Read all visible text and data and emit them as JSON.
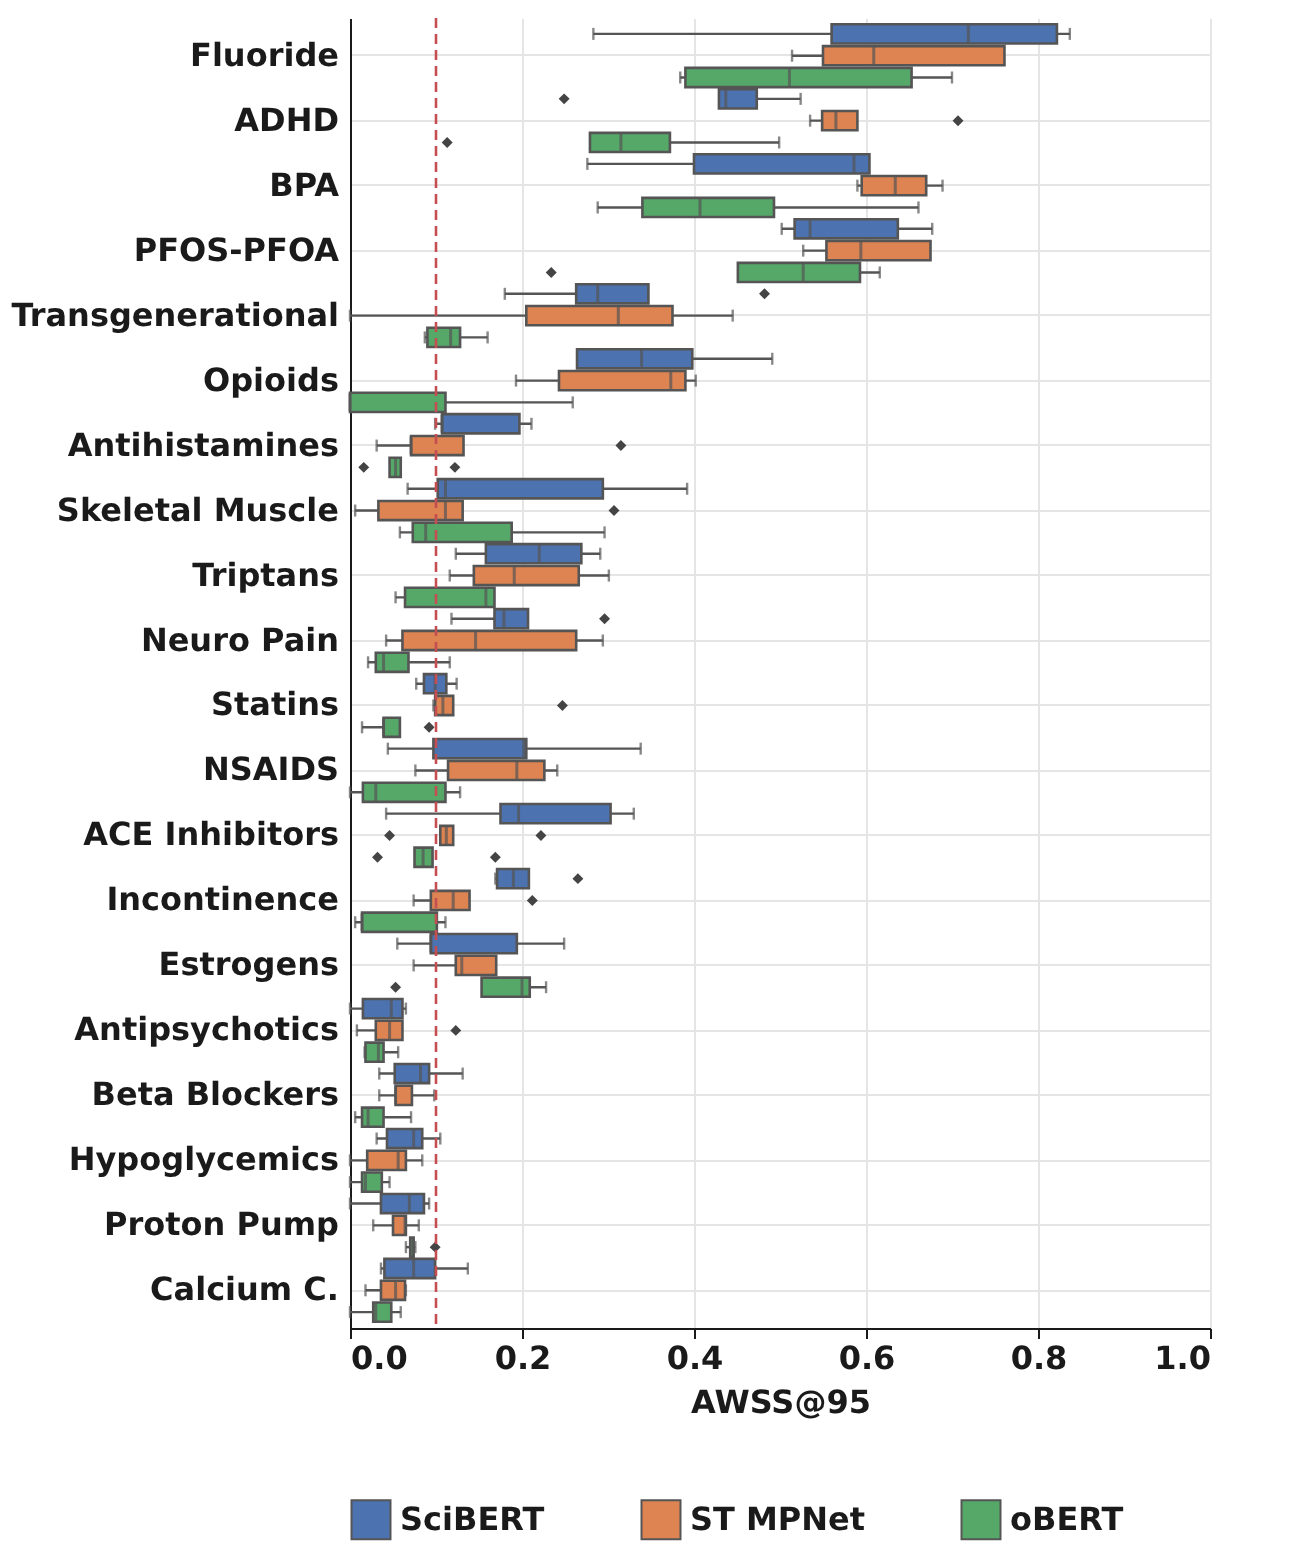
{
  "chart_data": {
    "type": "box",
    "orientation": "horizontal",
    "xlabel": "AWSS@95",
    "categories": [
      "Fluoride",
      "ADHD",
      "BPA",
      "PFOS-PFOA",
      "Transgenerational",
      "Opioids",
      "Antihistamines",
      "Skeletal Muscle",
      "Triptans",
      "Neuro Pain",
      "Statins",
      "NSAIDS",
      "ACE Inhibitors",
      "Incontinence",
      "Estrogens",
      "Antipsychotics",
      "Beta Blockers",
      "Hypoglycemics",
      "Proton Pump",
      "Calcium C."
    ],
    "xlim": [
      0,
      1
    ],
    "xticks": [
      {
        "value": 0,
        "label": "0.0"
      },
      0.2,
      0.4,
      0.6,
      0.8,
      {
        "value": 1,
        "label": "1.0"
      }
    ],
    "grid": true,
    "legend": "bottom",
    "ref_lines": [
      {
        "axis": "x",
        "value": 0.1,
        "color": "#c44e52",
        "line_style": "dashed"
      }
    ],
    "series": [
      {
        "name": "SciBERT",
        "color": "#4c72b0",
        "boxes": [
          {
            "low": 0.283,
            "q1": 0.56,
            "median": 0.719,
            "q3": 0.822,
            "high": 0.837
          },
          {
            "low": 0.429,
            "q1": 0.429,
            "median": 0.437,
            "q3": 0.473,
            "high": 0.524,
            "outliers": [
              0.249
            ]
          },
          {
            "low": 0.276,
            "q1": 0.4,
            "median": 0.586,
            "q3": 0.604,
            "high": 0.604
          },
          {
            "low": 0.502,
            "q1": 0.517,
            "median": 0.535,
            "q3": 0.637,
            "high": 0.677
          },
          {
            "low": 0.18,
            "q1": 0.263,
            "median": 0.288,
            "q3": 0.347,
            "high": 0.347,
            "outliers": [
              0.482
            ]
          },
          {
            "low": 0.264,
            "q1": 0.264,
            "median": 0.339,
            "q3": 0.398,
            "high": 0.491
          },
          {
            "low": 0.099,
            "q1": 0.107,
            "median": 0.107,
            "q3": 0.197,
            "high": 0.211
          },
          {
            "low": 0.067,
            "q1": 0.102,
            "median": 0.111,
            "q3": 0.294,
            "high": 0.392
          },
          {
            "low": 0.123,
            "q1": 0.158,
            "median": 0.22,
            "q3": 0.269,
            "high": 0.291
          },
          {
            "low": 0.118,
            "q1": 0.168,
            "median": 0.179,
            "q3": 0.207,
            "high": 0.207,
            "outliers": [
              0.296
            ]
          },
          {
            "low": 0.077,
            "q1": 0.086,
            "median": 0.099,
            "q3": 0.112,
            "high": 0.124
          },
          {
            "low": 0.044,
            "q1": 0.097,
            "median": 0.202,
            "q3": 0.205,
            "high": 0.338
          },
          {
            "low": 0.042,
            "q1": 0.175,
            "median": 0.196,
            "q3": 0.303,
            "high": 0.33
          },
          {
            "low": 0.169,
            "q1": 0.171,
            "median": 0.19,
            "q3": 0.208,
            "high": 0.208,
            "outliers": [
              0.265
            ]
          },
          {
            "low": 0.055,
            "q1": 0.094,
            "median": 0.094,
            "q3": 0.194,
            "high": 0.249
          },
          {
            "low": 0.0,
            "q1": 0.015,
            "median": 0.048,
            "q3": 0.061,
            "high": 0.065
          },
          {
            "low": 0.034,
            "q1": 0.052,
            "median": 0.082,
            "q3": 0.092,
            "high": 0.131
          },
          {
            "low": 0.031,
            "q1": 0.043,
            "median": 0.074,
            "q3": 0.084,
            "high": 0.105
          },
          {
            "low": 0.0,
            "q1": 0.036,
            "median": 0.069,
            "q3": 0.086,
            "high": 0.092
          },
          {
            "low": 0.036,
            "q1": 0.04,
            "median": 0.074,
            "q3": 0.099,
            "high": 0.137
          }
        ]
      },
      {
        "name": "ST MPNet",
        "color": "#dd8452",
        "boxes": [
          {
            "low": 0.514,
            "q1": 0.55,
            "median": 0.609,
            "q3": 0.761,
            "high": 0.761
          },
          {
            "low": 0.535,
            "q1": 0.549,
            "median": 0.565,
            "q3": 0.59,
            "high": 0.59,
            "outliers": [
              0.707
            ]
          },
          {
            "low": 0.59,
            "q1": 0.595,
            "median": 0.634,
            "q3": 0.67,
            "high": 0.689
          },
          {
            "low": 0.527,
            "q1": 0.554,
            "median": 0.594,
            "q3": 0.675,
            "high": 0.675
          },
          {
            "low": 0.0,
            "q1": 0.205,
            "median": 0.312,
            "q3": 0.375,
            "high": 0.445
          },
          {
            "low": 0.193,
            "q1": 0.243,
            "median": 0.373,
            "q3": 0.39,
            "high": 0.402
          },
          {
            "low": 0.031,
            "q1": 0.071,
            "median": 0.071,
            "q3": 0.132,
            "high": 0.132,
            "outliers": [
              0.315
            ]
          },
          {
            "low": 0.006,
            "q1": 0.033,
            "median": 0.111,
            "q3": 0.131,
            "high": 0.131,
            "outliers": [
              0.307
            ]
          },
          {
            "low": 0.116,
            "q1": 0.144,
            "median": 0.191,
            "q3": 0.266,
            "high": 0.301
          },
          {
            "low": 0.042,
            "q1": 0.061,
            "median": 0.146,
            "q3": 0.263,
            "high": 0.294
          },
          {
            "low": 0.097,
            "q1": 0.099,
            "median": 0.108,
            "q3": 0.12,
            "high": 0.12,
            "outliers": [
              0.247
            ]
          },
          {
            "low": 0.076,
            "q1": 0.114,
            "median": 0.194,
            "q3": 0.226,
            "high": 0.241
          },
          {
            "low": 0.105,
            "q1": 0.105,
            "median": 0.112,
            "q3": 0.12,
            "high": 0.12,
            "outliers": [
              0.046,
              0.222
            ]
          },
          {
            "low": 0.074,
            "q1": 0.094,
            "median": 0.12,
            "q3": 0.139,
            "high": 0.139,
            "outliers": [
              0.212
            ]
          },
          {
            "low": 0.074,
            "q1": 0.123,
            "median": 0.13,
            "q3": 0.17,
            "high": 0.17
          },
          {
            "low": 0.008,
            "q1": 0.03,
            "median": 0.046,
            "q3": 0.061,
            "high": 0.061,
            "outliers": [
              0.123
            ]
          },
          {
            "low": 0.034,
            "q1": 0.053,
            "median": 0.053,
            "q3": 0.072,
            "high": 0.098
          },
          {
            "low": 0.0,
            "q1": 0.02,
            "median": 0.056,
            "q3": 0.065,
            "high": 0.084
          },
          {
            "low": 0.027,
            "q1": 0.05,
            "median": 0.064,
            "q3": 0.065,
            "high": 0.08
          },
          {
            "low": 0.018,
            "q1": 0.036,
            "median": 0.053,
            "q3": 0.064,
            "high": 0.065
          }
        ]
      },
      {
        "name": "oBERT",
        "color": "#55a868",
        "boxes": [
          {
            "low": 0.384,
            "q1": 0.39,
            "median": 0.511,
            "q3": 0.653,
            "high": 0.7
          },
          {
            "low": 0.279,
            "q1": 0.279,
            "median": 0.315,
            "q3": 0.372,
            "high": 0.499,
            "outliers": [
              0.113
            ]
          },
          {
            "low": 0.288,
            "q1": 0.34,
            "median": 0.407,
            "q3": 0.493,
            "high": 0.661
          },
          {
            "low": 0.451,
            "q1": 0.451,
            "median": 0.527,
            "q3": 0.593,
            "high": 0.616,
            "outliers": [
              0.234
            ]
          },
          {
            "low": 0.087,
            "q1": 0.09,
            "median": 0.117,
            "q3": 0.128,
            "high": 0.16
          },
          {
            "low": 0.0,
            "q1": 0.0,
            "median": 0.0,
            "q3": 0.111,
            "high": 0.259
          },
          {
            "low": 0.046,
            "q1": 0.046,
            "median": 0.053,
            "q3": 0.059,
            "high": 0.059,
            "outliers": [
              0.016,
              0.122
            ]
          },
          {
            "low": 0.058,
            "q1": 0.073,
            "median": 0.088,
            "q3": 0.188,
            "high": 0.296
          },
          {
            "low": 0.053,
            "q1": 0.064,
            "median": 0.158,
            "q3": 0.168,
            "high": 0.168
          },
          {
            "low": 0.021,
            "q1": 0.03,
            "median": 0.039,
            "q3": 0.068,
            "high": 0.116
          },
          {
            "low": 0.014,
            "q1": 0.039,
            "median": 0.039,
            "q3": 0.058,
            "high": 0.058,
            "outliers": [
              0.092
            ]
          },
          {
            "low": 0.0,
            "q1": 0.015,
            "median": 0.03,
            "q3": 0.111,
            "high": 0.128
          },
          {
            "low": 0.075,
            "q1": 0.075,
            "median": 0.085,
            "q3": 0.096,
            "high": 0.096,
            "outliers": [
              0.032,
              0.169
            ]
          },
          {
            "low": 0.006,
            "q1": 0.014,
            "median": 0.014,
            "q3": 0.101,
            "high": 0.111
          },
          {
            "low": 0.153,
            "q1": 0.153,
            "median": 0.2,
            "q3": 0.209,
            "high": 0.228,
            "outliers": [
              0.053
            ]
          },
          {
            "low": 0.017,
            "q1": 0.018,
            "median": 0.033,
            "q3": 0.039,
            "high": 0.056
          },
          {
            "low": 0.006,
            "q1": 0.014,
            "median": 0.021,
            "q3": 0.039,
            "high": 0.071
          },
          {
            "low": 0.0,
            "q1": 0.014,
            "median": 0.018,
            "q3": 0.037,
            "high": 0.046
          },
          {
            "low": 0.065,
            "q1": 0.07,
            "median": 0.073,
            "q3": 0.074,
            "high": 0.076,
            "outliers": [
              0.099
            ]
          },
          {
            "low": 0.0,
            "q1": 0.027,
            "median": 0.03,
            "q3": 0.048,
            "high": 0.059
          }
        ]
      }
    ]
  }
}
